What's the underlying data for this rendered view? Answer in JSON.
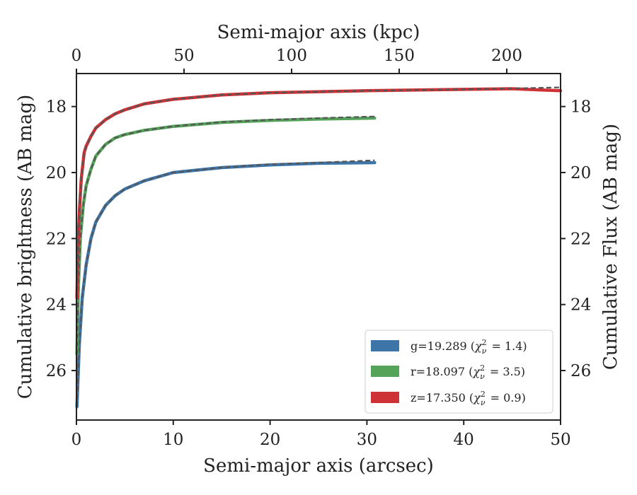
{
  "chart_data": {
    "type": "line",
    "xlabel": "Semi-major axis (arcsec)",
    "xlabel_top": "Semi-major axis (kpc)",
    "ylabel": "Cumulative brightness (AB mag)",
    "ylabel_right": "Cumulative Flux (AB mag)",
    "xlim": [
      0,
      50
    ],
    "xlim_top": [
      0,
      225
    ],
    "ylim": [
      27.5,
      17.0
    ],
    "y_inverted": true,
    "x_ticks": [
      0,
      10,
      20,
      30,
      40,
      50
    ],
    "x_ticks_top": [
      0,
      50,
      100,
      150,
      200
    ],
    "y_ticks": [
      18,
      20,
      22,
      24,
      26
    ],
    "legend_position": "lower-right",
    "series": [
      {
        "name": "g=19.289 (χ²ᵥ = 1.4)",
        "legend_main": "g=19.289 (",
        "legend_chi": "χ",
        "legend_sup": "2",
        "legend_sub": "ν",
        "legend_end": " = 1.4)",
        "color": "#3d75a8",
        "x": [
          0.05,
          0.3,
          0.6,
          1.0,
          1.5,
          2.0,
          3.0,
          4.0,
          5.0,
          7.0,
          10.0,
          15.0,
          20.0,
          25.0,
          30.8
        ],
        "y": [
          27.1,
          25.2,
          23.8,
          22.8,
          22.0,
          21.5,
          21.0,
          20.7,
          20.5,
          20.25,
          20.0,
          19.85,
          19.77,
          19.72,
          19.7
        ],
        "y_fit": [
          27.1,
          25.2,
          23.8,
          22.8,
          22.0,
          21.5,
          21.0,
          20.7,
          20.5,
          20.25,
          20.0,
          19.85,
          19.75,
          19.7,
          19.63
        ]
      },
      {
        "name": "r=18.097 (χ²ᵥ = 3.5)",
        "legend_main": "r=18.097 (",
        "legend_chi": "χ",
        "legend_sup": "2",
        "legend_sub": "ν",
        "legend_end": " = 3.5)",
        "color": "#55a35a",
        "x": [
          0.05,
          0.2,
          0.4,
          0.7,
          1.0,
          1.5,
          2.0,
          3.0,
          4.0,
          5.0,
          7.0,
          10.0,
          15.0,
          20.0,
          25.0,
          30.8
        ],
        "y": [
          25.5,
          23.5,
          22.0,
          21.0,
          20.4,
          19.9,
          19.5,
          19.15,
          18.95,
          18.85,
          18.72,
          18.6,
          18.48,
          18.42,
          18.38,
          18.35
        ],
        "y_fit": [
          25.5,
          23.5,
          22.0,
          21.0,
          20.4,
          19.9,
          19.5,
          19.15,
          18.95,
          18.85,
          18.72,
          18.6,
          18.47,
          18.4,
          18.35,
          18.3
        ]
      },
      {
        "name": "z=17.350 (χ²ᵥ = 0.9)",
        "legend_main": "z=17.350 (",
        "legend_chi": "χ",
        "legend_sup": "2",
        "legend_sub": "ν",
        "legend_end": " = 0.9)",
        "color": "#cf3236",
        "x": [
          0.05,
          0.15,
          0.3,
          0.5,
          0.8,
          1.0,
          1.5,
          2.0,
          3.0,
          4.0,
          5.0,
          7.0,
          10.0,
          15.0,
          20.0,
          30.0,
          40.0,
          45.0,
          50.0
        ],
        "y": [
          23.8,
          22.3,
          21.2,
          20.2,
          19.4,
          19.2,
          18.9,
          18.65,
          18.4,
          18.22,
          18.1,
          17.92,
          17.78,
          17.65,
          17.58,
          17.52,
          17.48,
          17.46,
          17.52
        ],
        "y_fit": [
          23.8,
          22.3,
          21.2,
          20.2,
          19.4,
          19.2,
          18.9,
          18.65,
          18.4,
          18.22,
          18.1,
          17.92,
          17.78,
          17.65,
          17.58,
          17.52,
          17.48,
          17.45,
          17.42
        ]
      }
    ]
  }
}
